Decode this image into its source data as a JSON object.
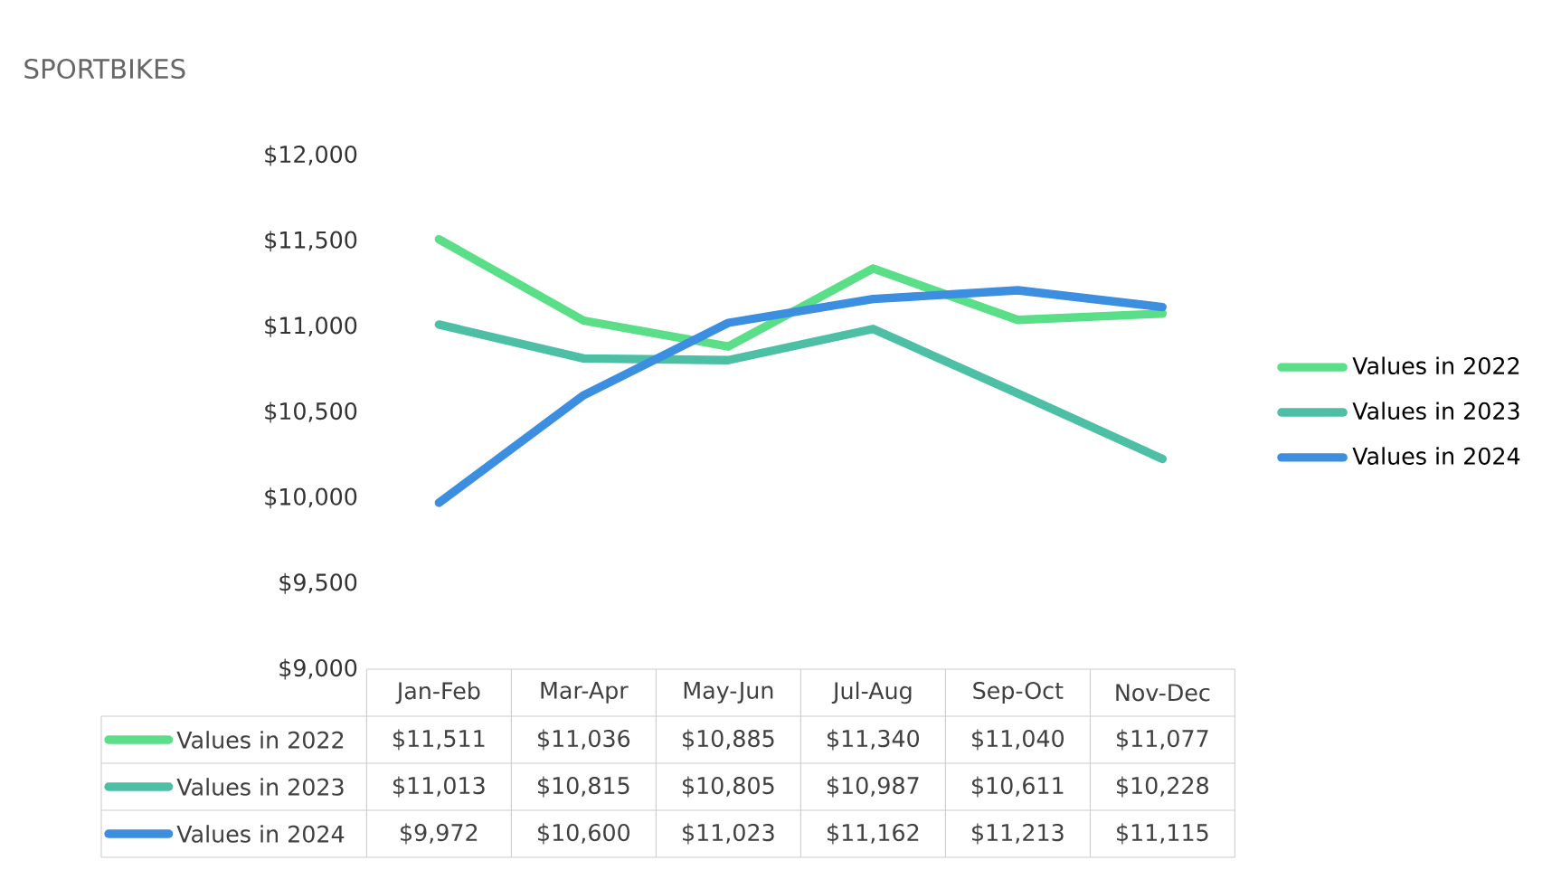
{
  "chart_data": {
    "type": "line",
    "title": "SPORTBIKES",
    "categories": [
      "Jan-Feb",
      "Mar-Apr",
      "May-Jun",
      "Jul-Aug",
      "Sep-Oct",
      "Nov-Dec"
    ],
    "series": [
      {
        "name": "Values in 2022",
        "color": "#5ade88",
        "values": [
          11511,
          11036,
          10885,
          11340,
          11040,
          11077
        ],
        "value_labels": [
          "$11,511",
          "$11,036",
          "$10,885",
          "$11,340",
          "$11,040",
          "$11,077"
        ]
      },
      {
        "name": "Values in 2023",
        "color": "#4cbfa5",
        "values": [
          11013,
          10815,
          10805,
          10987,
          10611,
          10228
        ],
        "value_labels": [
          "$11,013",
          "$10,815",
          "$10,805",
          "$10,987",
          "$10,611",
          "$10,228"
        ]
      },
      {
        "name": "Values in 2024",
        "color": "#3b8ee0",
        "values": [
          9972,
          10600,
          11023,
          11162,
          11213,
          11115
        ],
        "value_labels": [
          "$9,972",
          "$10,600",
          "$11,023",
          "$11,162",
          "$11,213",
          "$11,115"
        ]
      }
    ],
    "ylim": [
      9000,
      12000
    ],
    "yticks": [
      {
        "value": 9000,
        "label": "$9,000"
      },
      {
        "value": 9500,
        "label": "$9,500"
      },
      {
        "value": 10000,
        "label": "$10,000"
      },
      {
        "value": 10500,
        "label": "$10,500"
      },
      {
        "value": 11000,
        "label": "$11,000"
      },
      {
        "value": 11500,
        "label": "$11,500"
      },
      {
        "value": 12000,
        "label": "$12,000"
      }
    ],
    "legend": "right"
  }
}
